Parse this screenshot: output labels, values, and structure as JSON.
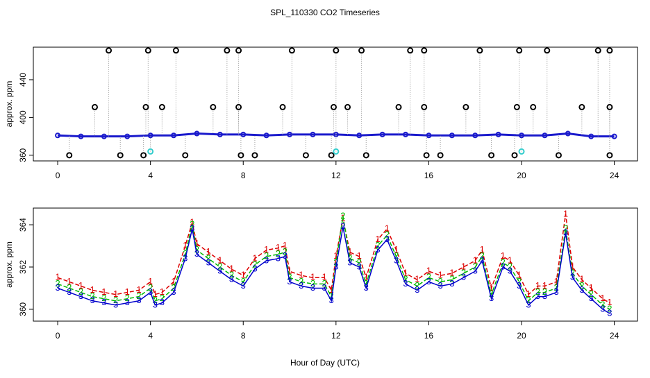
{
  "chart_data": [
    {
      "type": "scatter",
      "title": "SPL_110330  CO2 Timeseries",
      "y_label": "approx. ppm",
      "xlim": [
        -1.05,
        25
      ],
      "ylim": [
        354,
        474.5
      ],
      "xticks": [
        0,
        4,
        8,
        12,
        16,
        20,
        24
      ],
      "yticks": [
        360,
        400,
        440
      ],
      "drop_lines": true,
      "series": [
        {
          "color": "#1a1acc",
          "line": true,
          "x": [
            0,
            1,
            2,
            3,
            4,
            5,
            6,
            7,
            8,
            9,
            10,
            11,
            12,
            13,
            14,
            15,
            16,
            17,
            18,
            19,
            20,
            21,
            22,
            23,
            24
          ],
          "values": [
            381,
            380,
            380,
            380,
            381,
            381,
            383,
            382,
            382,
            381,
            382,
            382,
            382,
            381,
            382,
            382,
            381,
            381,
            381,
            382,
            381,
            381,
            383,
            380,
            380
          ]
        },
        {
          "color": "#000000",
          "line": false,
          "x": [
            2.2,
            3.9,
            5.1,
            7.3,
            7.8,
            10.1,
            12.0,
            13.1,
            15.2,
            15.8,
            18.2,
            19.9,
            21.1,
            23.3,
            23.8,
            1.6,
            3.8,
            4.5,
            6.7,
            7.8,
            9.7,
            11.9,
            12.5,
            14.7,
            15.8,
            17.6,
            19.8,
            20.5,
            22.6,
            23.8,
            0.5,
            2.7,
            3.7,
            5.5,
            7.9,
            8.5,
            10.7,
            11.8,
            13.3,
            15.9,
            16.5,
            18.7,
            19.7,
            21.6,
            23.8
          ],
          "values": [
            471,
            471,
            471,
            471,
            471,
            471,
            471,
            471,
            471,
            471,
            471,
            471,
            471,
            471,
            471,
            411,
            411,
            411,
            411,
            411,
            411,
            411,
            411,
            411,
            411,
            411,
            411,
            411,
            411,
            411,
            360,
            360,
            360,
            360,
            360,
            360,
            360,
            360,
            360,
            360,
            360,
            360,
            360,
            360,
            360
          ]
        },
        {
          "color": "#33cccc",
          "line": false,
          "x": [
            4.0,
            12.0,
            20.0
          ],
          "values": [
            364,
            364,
            364
          ]
        }
      ]
    },
    {
      "type": "line",
      "y_label": "approx. ppm",
      "x_label": "Hour of Day (UTC)",
      "xlim": [
        -1.05,
        25
      ],
      "ylim": [
        359.44,
        364.79
      ],
      "xticks": [
        0,
        4,
        8,
        12,
        16,
        20,
        24
      ],
      "yticks": [
        360,
        362,
        364
      ],
      "x": [
        0,
        0.5,
        1,
        1.5,
        2,
        2.5,
        3,
        3.5,
        4,
        4.2,
        4.5,
        5,
        5.5,
        5.8,
        6,
        6.5,
        7,
        7.5,
        8,
        8.5,
        9,
        9.5,
        9.8,
        10,
        10.5,
        11,
        11.5,
        11.8,
        12,
        12.3,
        12.6,
        13,
        13.3,
        13.8,
        14.2,
        14.6,
        15,
        15.5,
        16,
        16.5,
        17,
        17.5,
        18,
        18.3,
        18.7,
        19.2,
        19.5,
        19.9,
        20.3,
        20.7,
        21,
        21.5,
        21.9,
        22.2,
        22.6,
        23,
        23.5,
        23.8
      ],
      "series": [
        {
          "marker": "1",
          "color": "#dd0000",
          "dash": true,
          "values": [
            361.5,
            361.3,
            361.1,
            360.9,
            360.8,
            360.7,
            360.8,
            360.9,
            361.3,
            360.7,
            360.8,
            361.3,
            363.0,
            364.1,
            363.1,
            362.7,
            362.3,
            361.9,
            361.6,
            362.4,
            362.8,
            362.9,
            363.0,
            361.8,
            361.6,
            361.5,
            361.5,
            360.9,
            362.5,
            364.3,
            362.7,
            362.5,
            361.5,
            363.3,
            363.8,
            362.8,
            361.7,
            361.4,
            361.8,
            361.6,
            361.7,
            362.0,
            362.3,
            362.8,
            361.0,
            362.5,
            362.3,
            361.6,
            360.7,
            361.1,
            361.1,
            361.3,
            364.5,
            362.0,
            361.4,
            361.0,
            360.5,
            360.3
          ]
        },
        {
          "marker": "2",
          "color": "#00bb00",
          "dash": true,
          "values": [
            361.2,
            361.0,
            360.8,
            360.6,
            360.5,
            360.4,
            360.5,
            360.6,
            361.0,
            360.4,
            360.5,
            361.0,
            362.6,
            364.0,
            362.8,
            362.4,
            362.0,
            361.6,
            361.3,
            362.1,
            362.5,
            362.6,
            362.7,
            361.5,
            361.3,
            361.2,
            361.2,
            360.6,
            362.2,
            364.4,
            362.4,
            362.2,
            361.2,
            363.0,
            363.5,
            362.5,
            361.4,
            361.1,
            361.5,
            361.3,
            361.4,
            361.7,
            362.0,
            362.5,
            360.7,
            362.2,
            362.0,
            361.3,
            360.4,
            360.8,
            360.8,
            361.0,
            363.8,
            361.7,
            361.1,
            360.7,
            360.2,
            360.0
          ]
        },
        {
          "marker": "3",
          "color": "#0000cc",
          "dash": false,
          "values": [
            361.0,
            360.8,
            360.6,
            360.4,
            360.3,
            360.2,
            360.3,
            360.4,
            360.8,
            360.2,
            360.3,
            360.8,
            362.4,
            363.8,
            362.6,
            362.2,
            361.8,
            361.4,
            361.1,
            361.9,
            362.3,
            362.4,
            362.5,
            361.3,
            361.1,
            361.0,
            361.0,
            360.4,
            362.0,
            363.9,
            362.2,
            362.0,
            361.0,
            362.8,
            363.3,
            362.3,
            361.2,
            360.9,
            361.3,
            361.1,
            361.2,
            361.5,
            361.8,
            362.3,
            360.5,
            362.0,
            361.8,
            361.1,
            360.2,
            360.6,
            360.6,
            360.8,
            363.6,
            361.5,
            360.9,
            360.5,
            360.0,
            359.8
          ]
        }
      ]
    }
  ]
}
